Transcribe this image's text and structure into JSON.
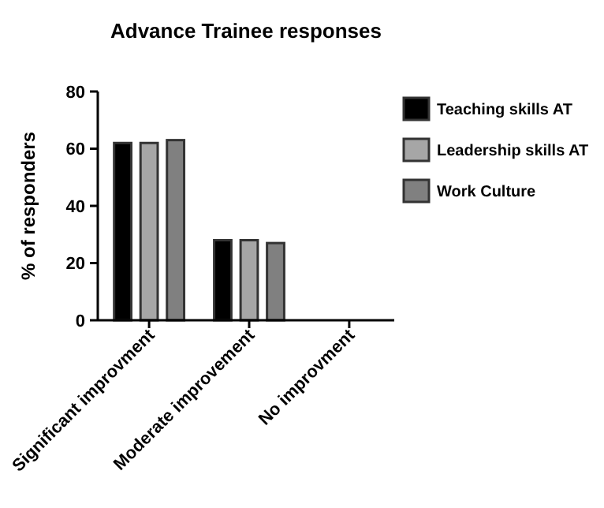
{
  "chart_data": {
    "type": "bar",
    "title": "Advance Trainee responses",
    "ylabel": "% of responders",
    "categories": [
      "Significant improvment",
      "Moderate improvement",
      "No improvment"
    ],
    "series": [
      {
        "name": "Teaching skills AT",
        "color": "#000000",
        "values": [
          62,
          28,
          0
        ]
      },
      {
        "name": "Leadership skills AT",
        "color": "#a6a6a6",
        "values": [
          62,
          28,
          0
        ]
      },
      {
        "name": "Work Culture",
        "color": "#808080",
        "values": [
          63,
          27,
          0
        ]
      }
    ],
    "ylim": [
      0,
      80
    ],
    "yticks": [
      0,
      20,
      40,
      60,
      80
    ],
    "grid": false,
    "legend": "right"
  }
}
